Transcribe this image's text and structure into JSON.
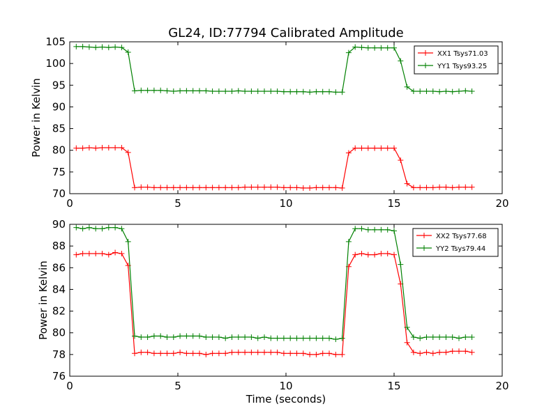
{
  "figure": {
    "title": "GL24, ID:77794 Calibrated Amplitude",
    "xlabel": "Time (seconds)"
  },
  "chart_data": [
    {
      "type": "line",
      "ylabel": "Power in Kelvin",
      "xlim": [
        0,
        20
      ],
      "ylim": [
        70,
        105
      ],
      "xticks": [
        0,
        5,
        10,
        15,
        20
      ],
      "yticks": [
        70,
        75,
        80,
        85,
        90,
        95,
        100,
        105
      ],
      "legend_position": "top-right",
      "grid": false,
      "series": [
        {
          "name": "XX1 Tsys71.03",
          "color": "#ff0000",
          "marker": "plus",
          "x": [
            0.3,
            0.6,
            0.9,
            1.2,
            1.5,
            1.8,
            2.1,
            2.4,
            2.7,
            3.0,
            3.3,
            3.6,
            3.9,
            4.2,
            4.5,
            4.8,
            5.1,
            5.4,
            5.7,
            6.0,
            6.3,
            6.6,
            6.9,
            7.2,
            7.5,
            7.8,
            8.1,
            8.4,
            8.7,
            9.0,
            9.3,
            9.6,
            9.9,
            10.2,
            10.5,
            10.8,
            11.1,
            11.4,
            11.7,
            12.0,
            12.3,
            12.6,
            12.9,
            13.2,
            13.5,
            13.8,
            14.1,
            14.4,
            14.7,
            15.0,
            15.3,
            15.6,
            15.9,
            16.2,
            16.5,
            16.8,
            17.1,
            17.4,
            17.7,
            18.0,
            18.3,
            18.6
          ],
          "y": [
            80.5,
            80.5,
            80.6,
            80.5,
            80.6,
            80.6,
            80.6,
            80.6,
            79.5,
            71.4,
            71.5,
            71.5,
            71.4,
            71.4,
            71.4,
            71.4,
            71.4,
            71.4,
            71.4,
            71.4,
            71.4,
            71.4,
            71.4,
            71.4,
            71.4,
            71.4,
            71.5,
            71.5,
            71.5,
            71.5,
            71.5,
            71.5,
            71.4,
            71.4,
            71.4,
            71.3,
            71.3,
            71.4,
            71.4,
            71.4,
            71.4,
            71.3,
            79.4,
            80.5,
            80.5,
            80.5,
            80.5,
            80.5,
            80.5,
            80.5,
            77.7,
            72.3,
            71.4,
            71.4,
            71.4,
            71.4,
            71.5,
            71.5,
            71.4,
            71.5,
            71.5,
            71.5
          ]
        },
        {
          "name": "YY1 Tsys93.25",
          "color": "#008000",
          "marker": "plus",
          "x": [
            0.3,
            0.6,
            0.9,
            1.2,
            1.5,
            1.8,
            2.1,
            2.4,
            2.7,
            3.0,
            3.3,
            3.6,
            3.9,
            4.2,
            4.5,
            4.8,
            5.1,
            5.4,
            5.7,
            6.0,
            6.3,
            6.6,
            6.9,
            7.2,
            7.5,
            7.8,
            8.1,
            8.4,
            8.7,
            9.0,
            9.3,
            9.6,
            9.9,
            10.2,
            10.5,
            10.8,
            11.1,
            11.4,
            11.7,
            12.0,
            12.3,
            12.6,
            12.9,
            13.2,
            13.5,
            13.8,
            14.1,
            14.4,
            14.7,
            15.0,
            15.3,
            15.6,
            15.9,
            16.2,
            16.5,
            16.8,
            17.1,
            17.4,
            17.7,
            18.0,
            18.3,
            18.6
          ],
          "y": [
            103.9,
            103.9,
            103.8,
            103.7,
            103.8,
            103.7,
            103.8,
            103.7,
            102.6,
            93.7,
            93.8,
            93.8,
            93.8,
            93.8,
            93.7,
            93.6,
            93.7,
            93.7,
            93.7,
            93.7,
            93.7,
            93.6,
            93.6,
            93.6,
            93.6,
            93.7,
            93.6,
            93.6,
            93.6,
            93.6,
            93.6,
            93.6,
            93.5,
            93.5,
            93.5,
            93.5,
            93.4,
            93.5,
            93.5,
            93.5,
            93.4,
            93.4,
            102.5,
            103.8,
            103.7,
            103.6,
            103.6,
            103.6,
            103.6,
            103.6,
            100.6,
            94.6,
            93.6,
            93.6,
            93.6,
            93.6,
            93.5,
            93.6,
            93.5,
            93.6,
            93.7,
            93.6
          ]
        }
      ]
    },
    {
      "type": "line",
      "ylabel": "Power in Kelvin",
      "xlabel": "Time (seconds)",
      "xlim": [
        0,
        20
      ],
      "ylim": [
        76,
        90
      ],
      "xticks": [
        0,
        5,
        10,
        15,
        20
      ],
      "yticks": [
        76,
        78,
        80,
        82,
        84,
        86,
        88,
        90
      ],
      "legend_position": "top-right",
      "grid": false,
      "series": [
        {
          "name": "XX2 Tsys77.68",
          "color": "#ff0000",
          "marker": "plus",
          "x": [
            0.3,
            0.6,
            0.9,
            1.2,
            1.5,
            1.8,
            2.1,
            2.4,
            2.7,
            3.0,
            3.3,
            3.6,
            3.9,
            4.2,
            4.5,
            4.8,
            5.1,
            5.4,
            5.7,
            6.0,
            6.3,
            6.6,
            6.9,
            7.2,
            7.5,
            7.8,
            8.1,
            8.4,
            8.7,
            9.0,
            9.3,
            9.6,
            9.9,
            10.2,
            10.5,
            10.8,
            11.1,
            11.4,
            11.7,
            12.0,
            12.3,
            12.6,
            12.9,
            13.2,
            13.5,
            13.8,
            14.1,
            14.4,
            14.7,
            15.0,
            15.3,
            15.6,
            15.9,
            16.2,
            16.5,
            16.8,
            17.1,
            17.4,
            17.7,
            18.0,
            18.3,
            18.6
          ],
          "y": [
            87.2,
            87.3,
            87.3,
            87.3,
            87.3,
            87.2,
            87.4,
            87.3,
            86.2,
            78.1,
            78.2,
            78.2,
            78.1,
            78.1,
            78.1,
            78.1,
            78.2,
            78.1,
            78.1,
            78.1,
            78.0,
            78.1,
            78.1,
            78.1,
            78.2,
            78.2,
            78.2,
            78.2,
            78.2,
            78.2,
            78.2,
            78.2,
            78.1,
            78.1,
            78.1,
            78.1,
            78.0,
            78.0,
            78.1,
            78.1,
            78.0,
            78.0,
            86.1,
            87.2,
            87.3,
            87.2,
            87.2,
            87.3,
            87.3,
            87.2,
            84.5,
            79.1,
            78.2,
            78.1,
            78.2,
            78.1,
            78.2,
            78.2,
            78.3,
            78.3,
            78.3,
            78.2
          ]
        },
        {
          "name": "YY2 Tsys79.44",
          "color": "#008000",
          "marker": "plus",
          "x": [
            0.3,
            0.6,
            0.9,
            1.2,
            1.5,
            1.8,
            2.1,
            2.4,
            2.7,
            3.0,
            3.3,
            3.6,
            3.9,
            4.2,
            4.5,
            4.8,
            5.1,
            5.4,
            5.7,
            6.0,
            6.3,
            6.6,
            6.9,
            7.2,
            7.5,
            7.8,
            8.1,
            8.4,
            8.7,
            9.0,
            9.3,
            9.6,
            9.9,
            10.2,
            10.5,
            10.8,
            11.1,
            11.4,
            11.7,
            12.0,
            12.3,
            12.6,
            12.9,
            13.2,
            13.5,
            13.8,
            14.1,
            14.4,
            14.7,
            15.0,
            15.3,
            15.6,
            15.9,
            16.2,
            16.5,
            16.8,
            17.1,
            17.4,
            17.7,
            18.0,
            18.3,
            18.6
          ],
          "y": [
            89.7,
            89.6,
            89.7,
            89.6,
            89.6,
            89.7,
            89.7,
            89.6,
            88.4,
            79.7,
            79.6,
            79.6,
            79.7,
            79.7,
            79.6,
            79.6,
            79.7,
            79.7,
            79.7,
            79.7,
            79.6,
            79.6,
            79.6,
            79.5,
            79.6,
            79.6,
            79.6,
            79.6,
            79.5,
            79.6,
            79.5,
            79.5,
            79.5,
            79.5,
            79.5,
            79.5,
            79.5,
            79.5,
            79.5,
            79.5,
            79.4,
            79.5,
            88.4,
            89.6,
            89.6,
            89.5,
            89.5,
            89.5,
            89.5,
            89.4,
            86.3,
            80.5,
            79.6,
            79.5,
            79.6,
            79.6,
            79.6,
            79.6,
            79.6,
            79.5,
            79.6,
            79.6
          ]
        }
      ]
    }
  ]
}
